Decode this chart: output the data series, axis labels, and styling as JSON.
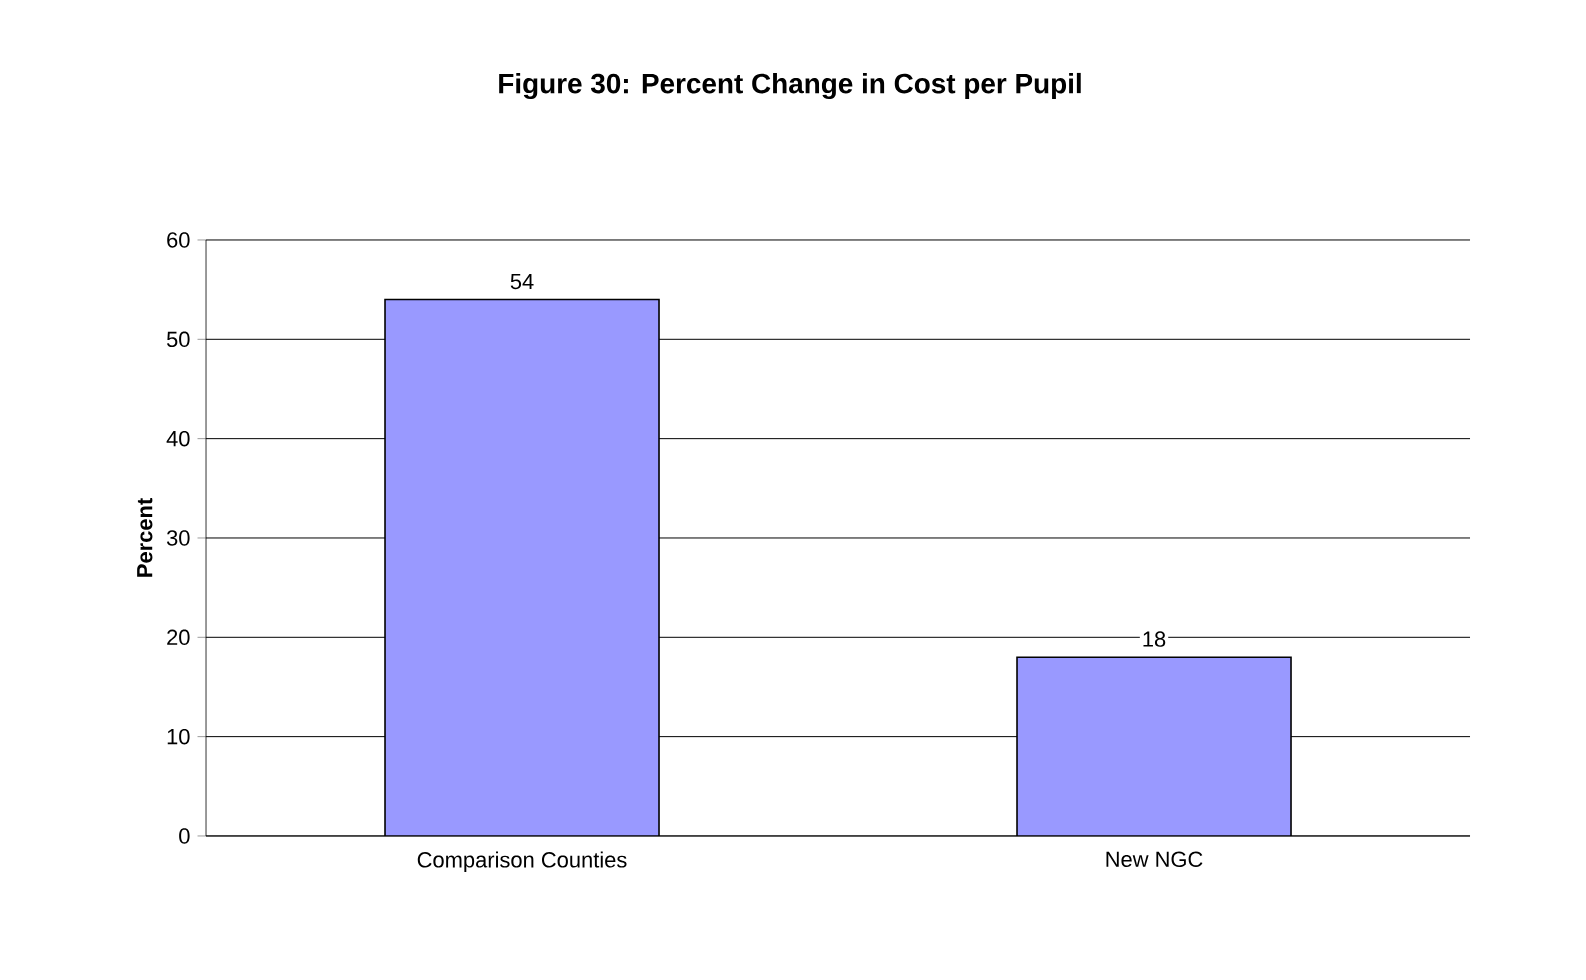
{
  "chart_data": {
    "type": "bar",
    "title": "Figure 30: Percent Change in Cost per Pupil",
    "ylabel": "Percent",
    "categories": [
      "Comparison Counties",
      "New NGC"
    ],
    "values": [
      54,
      18
    ],
    "color": "#9999ff",
    "ylim": [
      0,
      60
    ],
    "yticks": [
      0,
      10,
      20,
      30,
      40,
      50,
      60
    ],
    "grid": "y",
    "data_labels": true
  }
}
